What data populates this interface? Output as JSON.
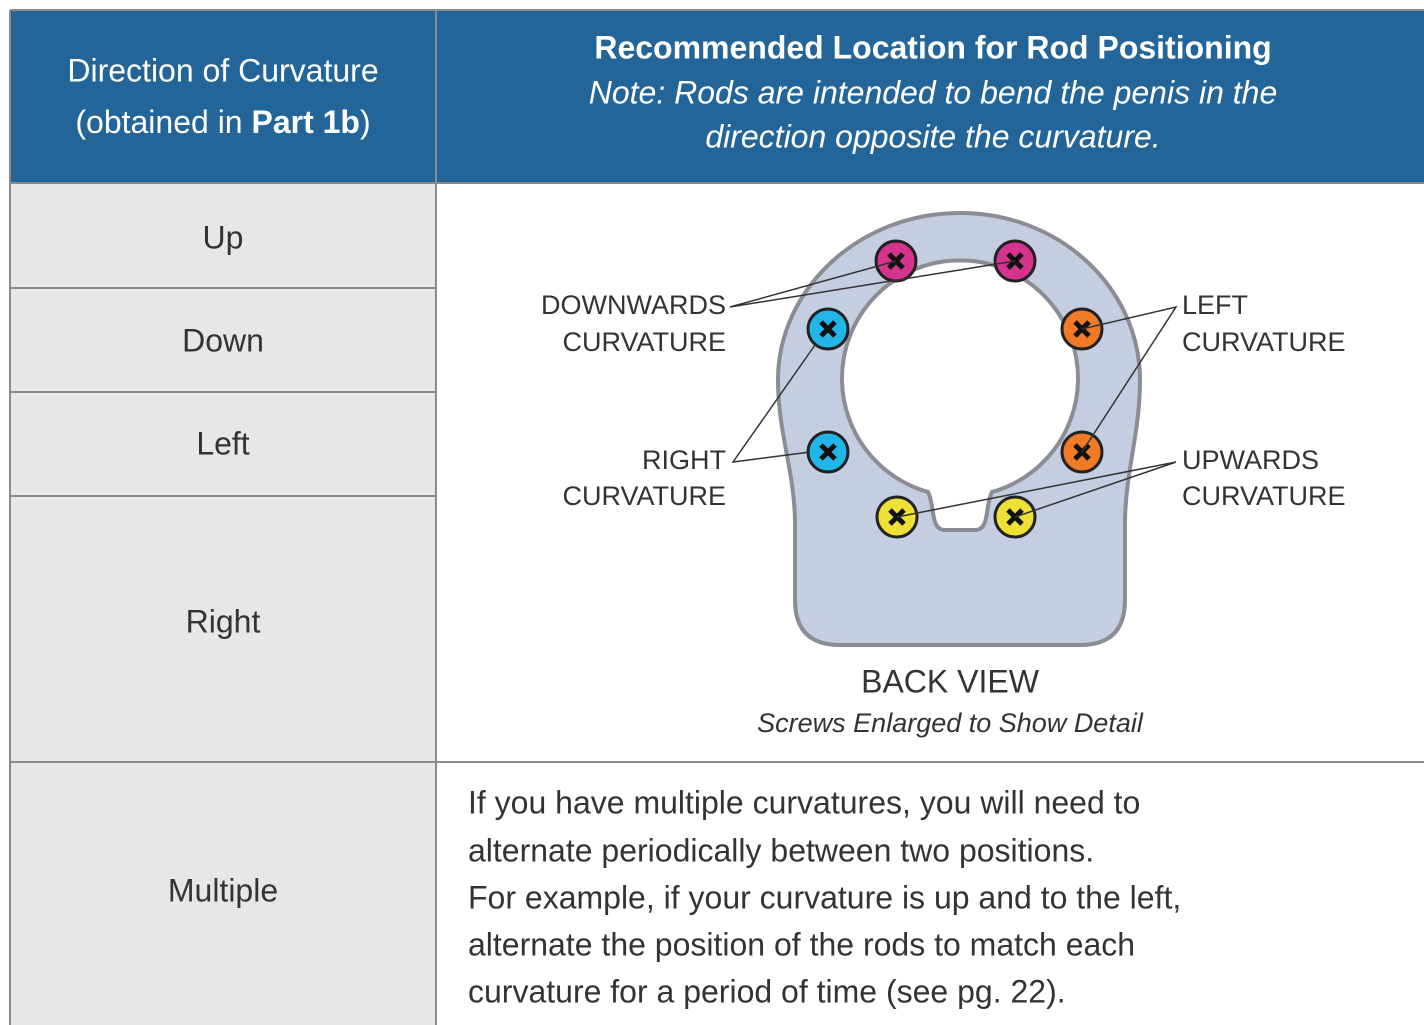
{
  "header": {
    "left": {
      "line1": "Direction of Curvature",
      "line2": [
        "(obtained in ",
        "Part 1b",
        ")"
      ]
    },
    "right": {
      "title": "Recommended Location for Rod Positioning",
      "note": [
        "Note: Rods are intended to bend the penis in the",
        "direction opposite the curvature."
      ]
    }
  },
  "rows": [
    "Up",
    "Down",
    "Left",
    "Right",
    "Multiple"
  ],
  "diagram": {
    "labels": {
      "downwards": [
        "DOWNWARDS",
        "CURVATURE"
      ],
      "left": [
        "LEFT",
        "CURVATURE"
      ],
      "right": [
        "RIGHT",
        "CURVATURE"
      ],
      "upwards": [
        "UPWARDS",
        "CURVATURE"
      ]
    },
    "caption": "BACK VIEW",
    "subcaption": "Screws Enlarged to Show Detail"
  },
  "multiple_text": [
    "If you have multiple curvatures, you will need to",
    "alternate periodically between two positions.",
    "For example, if your curvature is up and to the left,",
    "alternate the position of the rods to match each",
    "curvature for a period of time (see pg. 22)."
  ]
}
